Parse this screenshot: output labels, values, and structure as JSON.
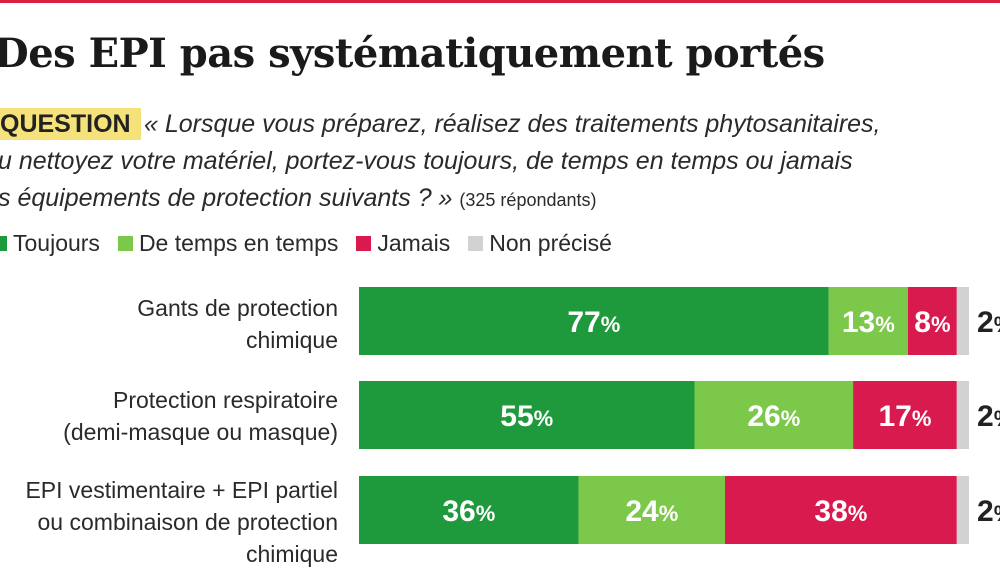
{
  "title": "Des EPI pas systématiquement portés",
  "question": {
    "badge": "QUESTION",
    "line1": "« Lorsque vous préparez, réalisez des traitements phytosanitaires,",
    "line2": "u nettoyez votre matériel, portez-vous toujours, de temps en temps ou jamais",
    "line3": "s équipements de protection suivants ? »",
    "respondents": "(325 répondants)"
  },
  "colors": {
    "toujours": "#1e9a3c",
    "de_temps_en_temps": "#7cc84a",
    "jamais": "#d81a4f",
    "non_precise": "#d2d2d2"
  },
  "chart_data": {
    "type": "bar",
    "orientation": "horizontal",
    "stacked": true,
    "categories": [
      [
        "Gants de protection",
        "chimique"
      ],
      [
        "Protection respiratoire",
        "(demi-masque ou masque)"
      ],
      [
        "EPI vestimentaire + EPI partiel",
        "ou combinaison de protection",
        "chimique"
      ]
    ],
    "series": [
      {
        "name": "Toujours",
        "values": [
          77,
          55,
          36
        ]
      },
      {
        "name": "De temps en temps",
        "values": [
          13,
          26,
          24
        ]
      },
      {
        "name": "Jamais",
        "values": [
          8,
          17,
          38
        ]
      },
      {
        "name": "Non précisé",
        "values": [
          2,
          2,
          2
        ]
      }
    ],
    "unit": "%",
    "xlim": [
      0,
      100
    ],
    "legend": "top-left"
  }
}
